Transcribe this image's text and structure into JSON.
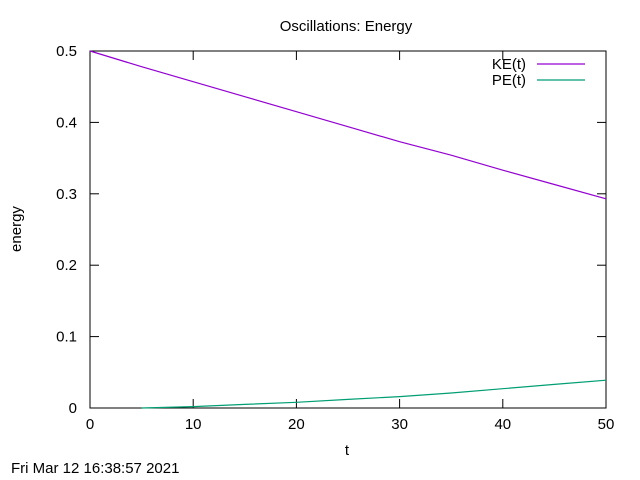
{
  "chart_data": {
    "type": "line",
    "title": "Oscillations: Energy",
    "xlabel": "t",
    "ylabel": "energy",
    "xlim": [
      0,
      50
    ],
    "ylim": [
      0,
      0.5
    ],
    "xticks": [
      0,
      10,
      20,
      30,
      40,
      50
    ],
    "xtick_labels": [
      "0",
      "10",
      "20",
      "30",
      "40",
      "50"
    ],
    "yticks": [
      0,
      0.1,
      0.2,
      0.3,
      0.4,
      0.5
    ],
    "ytick_labels": [
      "0",
      "0.1",
      "0.2",
      "0.3",
      "0.4",
      "0.5"
    ],
    "grid": false,
    "legend_position": "top-right",
    "series": [
      {
        "name": "KE(t)",
        "color": "#9400d3",
        "x": [
          0,
          5,
          10,
          15,
          20,
          25,
          30,
          35,
          40,
          45,
          50
        ],
        "y": [
          0.5,
          0.478,
          0.457,
          0.436,
          0.415,
          0.394,
          0.373,
          0.354,
          0.333,
          0.313,
          0.293
        ]
      },
      {
        "name": "PE(t)",
        "color": "#009e73",
        "x": [
          5,
          10,
          15,
          20,
          25,
          30,
          35,
          40,
          45,
          50
        ],
        "y": [
          0.0,
          0.002,
          0.005,
          0.008,
          0.012,
          0.016,
          0.021,
          0.027,
          0.033,
          0.039
        ]
      }
    ]
  },
  "footer": {
    "timestamp": "Fri Mar 12 16:38:57 2021"
  }
}
